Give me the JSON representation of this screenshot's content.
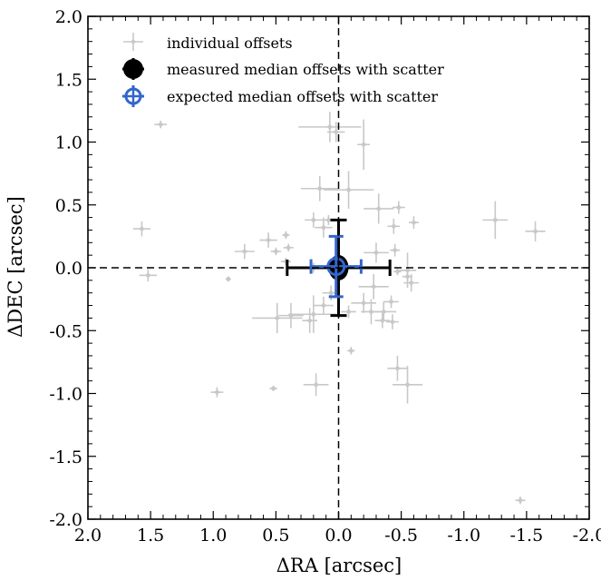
{
  "chart_data": {
    "type": "scatter",
    "xlabel": "ΔRA [arcsec]",
    "ylabel": "ΔDEC [arcsec]",
    "xlim": [
      2.0,
      -2.0
    ],
    "ylim": [
      -2.0,
      2.0
    ],
    "x_inverted": true,
    "xticks": [
      2.0,
      1.5,
      1.0,
      0.5,
      0.0,
      -0.5,
      -1.0,
      -1.5,
      -2.0
    ],
    "yticks": [
      2.0,
      1.5,
      1.0,
      0.5,
      0.0,
      -0.5,
      -1.0,
      -1.5,
      -2.0
    ],
    "xtick_labels": [
      "2.0",
      "1.5",
      "1.0",
      "0.5",
      "0.0",
      "-0.5",
      "-1.0",
      "-1.5",
      "-2.0"
    ],
    "ytick_labels": [
      "2.0",
      "1.5",
      "1.0",
      "0.5",
      "0.0",
      "-0.5",
      "-1.0",
      "-1.5",
      "-2.0"
    ],
    "reference_lines": {
      "x": 0.0,
      "y": 0.0,
      "style": "dashed"
    },
    "grid": false,
    "legend_position": "top-left",
    "series": [
      {
        "name": "individual offsets",
        "color": "#c8c8c8",
        "marker": "small-diamond-with-errorbars",
        "points": [
          {
            "x": 1.42,
            "y": 1.14,
            "ex": 0.05,
            "ey": 0.03
          },
          {
            "x": 1.57,
            "y": 0.31,
            "ex": 0.07,
            "ey": 0.06
          },
          {
            "x": 1.52,
            "y": -0.06,
            "ex": 0.07,
            "ey": 0.05
          },
          {
            "x": 0.97,
            "y": -0.99,
            "ex": 0.05,
            "ey": 0.04
          },
          {
            "x": 0.75,
            "y": 0.13,
            "ex": 0.08,
            "ey": 0.06
          },
          {
            "x": 0.88,
            "y": -0.09,
            "ex": 0.02,
            "ey": 0.02
          },
          {
            "x": 0.56,
            "y": 0.22,
            "ex": 0.07,
            "ey": 0.06
          },
          {
            "x": 0.5,
            "y": 0.13,
            "ex": 0.04,
            "ey": 0.03
          },
          {
            "x": 0.4,
            "y": 0.16,
            "ex": 0.04,
            "ey": 0.03
          },
          {
            "x": 0.42,
            "y": 0.05,
            "ex": 0.04,
            "ey": 0.03
          },
          {
            "x": 0.42,
            "y": 0.26,
            "ex": 0.03,
            "ey": 0.03
          },
          {
            "x": 0.52,
            "y": -0.96,
            "ex": 0.03,
            "ey": 0.02
          },
          {
            "x": 0.49,
            "y": -0.4,
            "ex": 0.2,
            "ey": 0.12
          },
          {
            "x": 0.38,
            "y": -0.38,
            "ex": 0.1,
            "ey": 0.1
          },
          {
            "x": 0.23,
            "y": -0.42,
            "ex": 0.06,
            "ey": 0.1
          },
          {
            "x": 0.2,
            "y": -0.37,
            "ex": 0.2,
            "ey": 0.15
          },
          {
            "x": 0.2,
            "y": 0.0,
            "ex": 0.05,
            "ey": 0.04
          },
          {
            "x": 0.18,
            "y": -0.93,
            "ex": 0.1,
            "ey": 0.09
          },
          {
            "x": 0.2,
            "y": 0.38,
            "ex": 0.07,
            "ey": 0.06
          },
          {
            "x": 0.15,
            "y": 0.63,
            "ex": 0.15,
            "ey": 0.1
          },
          {
            "x": 0.12,
            "y": 0.32,
            "ex": 0.07,
            "ey": 0.08
          },
          {
            "x": 0.07,
            "y": 1.12,
            "ex": 0.25,
            "ey": 0.12
          },
          {
            "x": 0.02,
            "y": 1.08,
            "ex": 0.07,
            "ey": 0.08
          },
          {
            "x": 0.08,
            "y": 0.38,
            "ex": 0.05,
            "ey": 0.04
          },
          {
            "x": 0.12,
            "y": -0.3,
            "ex": 0.08,
            "ey": 0.07
          },
          {
            "x": 0.06,
            "y": -0.2,
            "ex": 0.07,
            "ey": 0.06
          },
          {
            "x": 0.02,
            "y": -0.05,
            "ex": 0.03,
            "ey": 0.03
          },
          {
            "x": -0.08,
            "y": 0.62,
            "ex": 0.2,
            "ey": 0.15
          },
          {
            "x": -0.08,
            "y": -0.35,
            "ex": 0.06,
            "ey": 0.05
          },
          {
            "x": -0.1,
            "y": -0.66,
            "ex": 0.03,
            "ey": 0.03
          },
          {
            "x": -0.2,
            "y": 0.98,
            "ex": 0.05,
            "ey": 0.2
          },
          {
            "x": -0.3,
            "y": 0.12,
            "ex": 0.1,
            "ey": 0.08
          },
          {
            "x": -0.32,
            "y": 0.47,
            "ex": 0.12,
            "ey": 0.12
          },
          {
            "x": -0.28,
            "y": -0.15,
            "ex": 0.12,
            "ey": 0.1
          },
          {
            "x": -0.2,
            "y": -0.28,
            "ex": 0.1,
            "ey": 0.08
          },
          {
            "x": -0.26,
            "y": -0.35,
            "ex": 0.08,
            "ey": 0.1
          },
          {
            "x": -0.36,
            "y": -0.35,
            "ex": 0.1,
            "ey": 0.08
          },
          {
            "x": -0.35,
            "y": -0.42,
            "ex": 0.06,
            "ey": 0.06
          },
          {
            "x": -0.43,
            "y": -0.43,
            "ex": 0.05,
            "ey": 0.06
          },
          {
            "x": -0.42,
            "y": -0.27,
            "ex": 0.06,
            "ey": 0.05
          },
          {
            "x": -0.44,
            "y": 0.33,
            "ex": 0.05,
            "ey": 0.06
          },
          {
            "x": -0.45,
            "y": 0.14,
            "ex": 0.04,
            "ey": 0.05
          },
          {
            "x": -0.47,
            "y": -0.03,
            "ex": 0.03,
            "ey": 0.03
          },
          {
            "x": -0.48,
            "y": 0.48,
            "ex": 0.05,
            "ey": 0.05
          },
          {
            "x": -0.55,
            "y": -0.07,
            "ex": 0.04,
            "ey": 0.04
          },
          {
            "x": -0.58,
            "y": -0.12,
            "ex": 0.06,
            "ey": 0.07
          },
          {
            "x": -0.6,
            "y": 0.36,
            "ex": 0.04,
            "ey": 0.05
          },
          {
            "x": -0.55,
            "y": -0.02,
            "ex": 0.07,
            "ey": 0.14
          },
          {
            "x": -0.47,
            "y": -0.8,
            "ex": 0.08,
            "ey": 0.1
          },
          {
            "x": -0.55,
            "y": -0.93,
            "ex": 0.12,
            "ey": 0.15
          },
          {
            "x": -1.25,
            "y": 0.38,
            "ex": 0.1,
            "ey": 0.15
          },
          {
            "x": -1.57,
            "y": 0.29,
            "ex": 0.08,
            "ey": 0.08
          },
          {
            "x": -1.45,
            "y": -1.85,
            "ex": 0.04,
            "ey": 0.03
          }
        ]
      },
      {
        "name": "measured median offsets with scatter",
        "color": "#000000",
        "marker": "filled-circle",
        "points": [
          {
            "x": 0.0,
            "y": 0.0,
            "ex": 0.41,
            "ey": 0.38
          }
        ]
      },
      {
        "name": "expected median offsets with scatter",
        "color": "#3366cc",
        "marker": "hollow-circle-with-cross",
        "points": [
          {
            "x": 0.02,
            "y": 0.01,
            "ex": 0.2,
            "ey": 0.24
          }
        ]
      }
    ]
  }
}
